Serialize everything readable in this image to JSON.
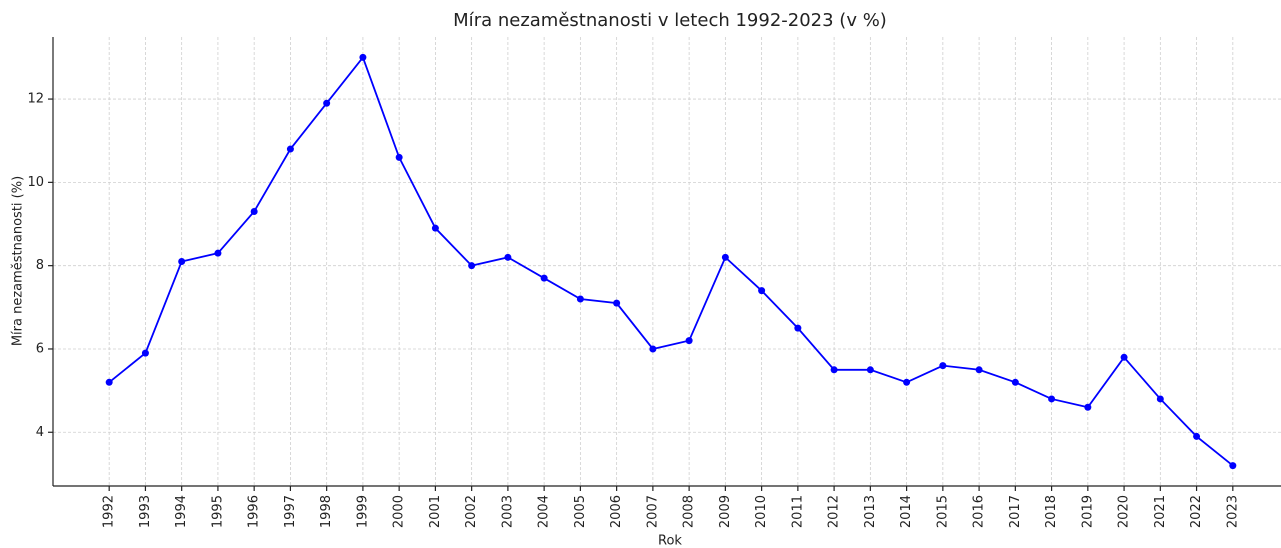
{
  "chart_data": {
    "type": "line",
    "title": "Míra nezaměstnanosti v letech 1992-2023 (v %)",
    "x_label": "Rok",
    "y_label": "Míra nezaměstnanosti (%)",
    "x": [
      1992,
      1993,
      1994,
      1995,
      1996,
      1997,
      1998,
      1999,
      2000,
      2001,
      2002,
      2003,
      2004,
      2005,
      2006,
      2007,
      2008,
      2009,
      2010,
      2011,
      2012,
      2013,
      2014,
      2015,
      2016,
      2017,
      2018,
      2019,
      2020,
      2021,
      2022,
      2023
    ],
    "series": [
      {
        "name": "Míra nezaměstnanosti",
        "color": "#0000ff",
        "values": [
          5.2,
          5.9,
          8.1,
          8.3,
          9.3,
          10.8,
          11.9,
          13.0,
          10.6,
          8.9,
          8.0,
          8.2,
          7.7,
          7.2,
          7.1,
          6.0,
          6.2,
          8.2,
          7.4,
          6.5,
          5.5,
          5.5,
          5.2,
          5.6,
          5.5,
          5.2,
          4.8,
          4.6,
          5.8,
          4.8,
          3.9,
          3.2
        ]
      }
    ],
    "xlim": [
      1990.45,
      2024.55
    ],
    "xticks": [
      1992,
      1993,
      1994,
      1995,
      1996,
      1997,
      1998,
      1999,
      2000,
      2001,
      2002,
      2003,
      2004,
      2005,
      2006,
      2007,
      2008,
      2009,
      2010,
      2011,
      2012,
      2013,
      2014,
      2015,
      2016,
      2017,
      2018,
      2019,
      2020,
      2021,
      2022,
      2023
    ],
    "ylim": [
      2.71,
      13.49
    ],
    "yticks": [
      4,
      6,
      8,
      10,
      12
    ],
    "grid": true
  }
}
